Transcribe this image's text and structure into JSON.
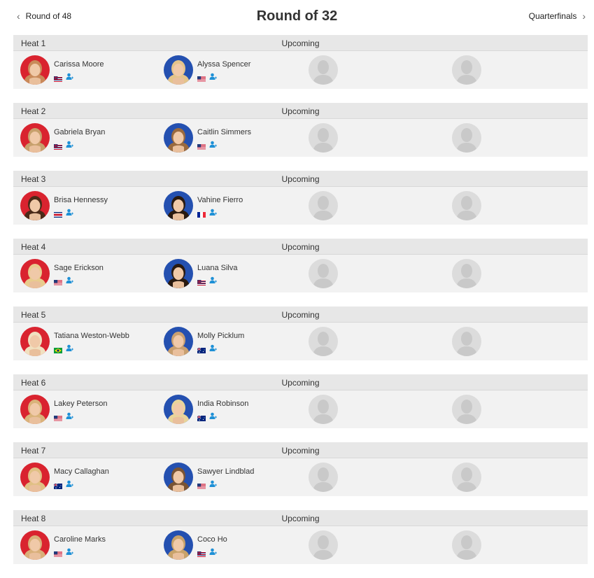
{
  "nav": {
    "prev_label": "Round of 48",
    "title": "Round of 32",
    "next_label": "Quarterfinals"
  },
  "heats": [
    {
      "name": "Heat 1",
      "status": "Upcoming",
      "athletes": [
        {
          "name": "Carissa Moore",
          "flag": "hawaii",
          "avatar_bg": "red",
          "hair": "#c98a5a"
        },
        {
          "name": "Alyssa Spencer",
          "flag": "usa",
          "avatar_bg": "blue",
          "hair": "#e4c48a"
        }
      ]
    },
    {
      "name": "Heat 2",
      "status": "Upcoming",
      "athletes": [
        {
          "name": "Gabriela Bryan",
          "flag": "hawaii",
          "avatar_bg": "red",
          "hair": "#c7a06c"
        },
        {
          "name": "Caitlin Simmers",
          "flag": "usa",
          "avatar_bg": "blue",
          "hair": "#9a6a3e"
        }
      ]
    },
    {
      "name": "Heat 3",
      "status": "Upcoming",
      "athletes": [
        {
          "name": "Brisa Hennessy",
          "flag": "costa-rica",
          "avatar_bg": "red",
          "hair": "#4a2a18"
        },
        {
          "name": "Vahine Fierro",
          "flag": "france",
          "avatar_bg": "blue",
          "hair": "#2a1a10"
        }
      ]
    },
    {
      "name": "Heat 4",
      "status": "Upcoming",
      "athletes": [
        {
          "name": "Sage Erickson",
          "flag": "usa",
          "avatar_bg": "red",
          "hair": "#e8cc8e"
        },
        {
          "name": "Luana Silva",
          "flag": "hawaii",
          "avatar_bg": "blue",
          "hair": "#2a1a10"
        }
      ]
    },
    {
      "name": "Heat 5",
      "status": "Upcoming",
      "athletes": [
        {
          "name": "Tatiana Weston-Webb",
          "flag": "brazil",
          "avatar_bg": "red",
          "hair": "#f0e0c0"
        },
        {
          "name": "Molly Picklum",
          "flag": "australia",
          "avatar_bg": "blue",
          "hair": "#c9a070"
        }
      ]
    },
    {
      "name": "Heat 6",
      "status": "Upcoming",
      "athletes": [
        {
          "name": "Lakey Peterson",
          "flag": "usa",
          "avatar_bg": "red",
          "hair": "#d9b37a"
        },
        {
          "name": "India Robinson",
          "flag": "australia",
          "avatar_bg": "blue",
          "hair": "#e8d49a"
        }
      ]
    },
    {
      "name": "Heat 7",
      "status": "Upcoming",
      "athletes": [
        {
          "name": "Macy Callaghan",
          "flag": "australia",
          "avatar_bg": "red",
          "hair": "#e0c084"
        },
        {
          "name": "Sawyer Lindblad",
          "flag": "usa",
          "avatar_bg": "blue",
          "hair": "#7a5434"
        }
      ]
    },
    {
      "name": "Heat 8",
      "status": "Upcoming",
      "athletes": [
        {
          "name": "Caroline Marks",
          "flag": "usa",
          "avatar_bg": "red",
          "hair": "#d9b07a"
        },
        {
          "name": "Coco Ho",
          "flag": "hawaii",
          "avatar_bg": "blue",
          "hair": "#c8a26a"
        }
      ]
    }
  ],
  "colors": {
    "avatar_red": "#d9232f",
    "avatar_blue": "#2450b0",
    "follow_icon": "#1e90d6"
  },
  "icons": {
    "prev": "chevron-left-icon",
    "next": "chevron-right-icon",
    "follow": "add-user-icon",
    "empty_slot": "avatar-placeholder-icon"
  }
}
